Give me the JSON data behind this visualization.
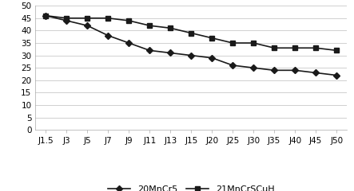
{
  "x_labels": [
    "J1.5",
    "J3",
    "J5",
    "J7",
    "J9",
    "J11",
    "J13",
    "J15",
    "J20",
    "J25",
    "J30",
    "J35",
    "J40",
    "J45",
    "J50"
  ],
  "series1_name": "20MnCr5",
  "series1_values": [
    46,
    44,
    42,
    38,
    35,
    32,
    31,
    30,
    29,
    26,
    25,
    24,
    24,
    23,
    22
  ],
  "series2_name": "21MnCrSCuH",
  "series2_values": [
    46,
    45,
    45,
    45,
    44,
    42,
    41,
    39,
    37,
    35,
    35,
    33,
    33,
    33,
    32
  ],
  "ylim": [
    0,
    50
  ],
  "yticks": [
    0,
    5,
    10,
    15,
    20,
    25,
    30,
    35,
    40,
    45,
    50
  ],
  "series1_color": "#1a1a1a",
  "series2_color": "#1a1a1a",
  "series1_marker": "D",
  "series2_marker": "s",
  "line_width": 1.2,
  "marker_size": 4,
  "bg_color": "#ffffff",
  "grid_color": "#d0d0d0",
  "legend_ncol": 2,
  "font_size": 8,
  "tick_font_size": 7.5
}
